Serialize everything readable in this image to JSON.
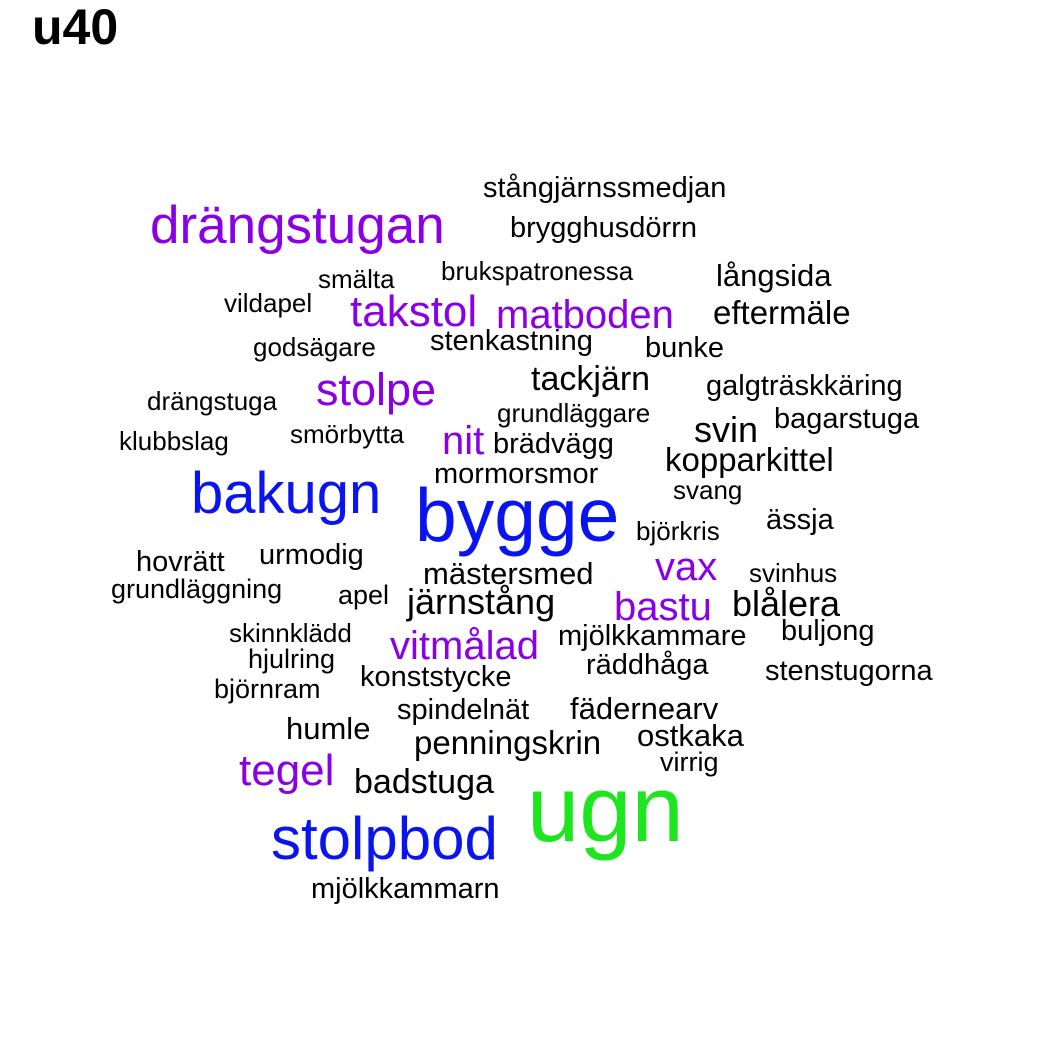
{
  "title": "u40",
  "palette": {
    "black": "#000000",
    "purple": "#8a00e6",
    "blue": "#0a14ee",
    "green": "#1ee61e"
  },
  "words": [
    {
      "text": "stångjärnssmedjan",
      "color": "black"
    },
    {
      "text": "drängstugan",
      "color": "purple"
    },
    {
      "text": "brygghusdörrn",
      "color": "black"
    },
    {
      "text": "smälta",
      "color": "black"
    },
    {
      "text": "brukspatronessa",
      "color": "black"
    },
    {
      "text": "långsida",
      "color": "black"
    },
    {
      "text": "vildapel",
      "color": "black"
    },
    {
      "text": "takstol",
      "color": "purple"
    },
    {
      "text": "matboden",
      "color": "purple"
    },
    {
      "text": "eftermäle",
      "color": "black"
    },
    {
      "text": "godsägare",
      "color": "black"
    },
    {
      "text": "stenkastning",
      "color": "black"
    },
    {
      "text": "bunke",
      "color": "black"
    },
    {
      "text": "tackjärn",
      "color": "black"
    },
    {
      "text": "stolpe",
      "color": "purple"
    },
    {
      "text": "galgträskkäring",
      "color": "black"
    },
    {
      "text": "drängstuga",
      "color": "black"
    },
    {
      "text": "grundläggare",
      "color": "black"
    },
    {
      "text": "bagarstuga",
      "color": "black"
    },
    {
      "text": "svin",
      "color": "black"
    },
    {
      "text": "smörbytta",
      "color": "black"
    },
    {
      "text": "nit",
      "color": "purple"
    },
    {
      "text": "klubbslag",
      "color": "black"
    },
    {
      "text": "brädvägg",
      "color": "black"
    },
    {
      "text": "kopparkittel",
      "color": "black"
    },
    {
      "text": "mormorsmor",
      "color": "black"
    },
    {
      "text": "bakugn",
      "color": "blue"
    },
    {
      "text": "svang",
      "color": "black"
    },
    {
      "text": "bygge",
      "color": "blue"
    },
    {
      "text": "ässja",
      "color": "black"
    },
    {
      "text": "björkris",
      "color": "black"
    },
    {
      "text": "hovrätt",
      "color": "black"
    },
    {
      "text": "urmodig",
      "color": "black"
    },
    {
      "text": "vax",
      "color": "purple"
    },
    {
      "text": "mästersmed",
      "color": "black"
    },
    {
      "text": "svinhus",
      "color": "black"
    },
    {
      "text": "grundläggning",
      "color": "black"
    },
    {
      "text": "apel",
      "color": "black"
    },
    {
      "text": "järnstång",
      "color": "black"
    },
    {
      "text": "bastu",
      "color": "purple"
    },
    {
      "text": "blålera",
      "color": "black"
    },
    {
      "text": "skinnklädd",
      "color": "black"
    },
    {
      "text": "vitmålad",
      "color": "purple"
    },
    {
      "text": "mjölkkammare",
      "color": "black"
    },
    {
      "text": "buljong",
      "color": "black"
    },
    {
      "text": "hjulring",
      "color": "black"
    },
    {
      "text": "räddhåga",
      "color": "black"
    },
    {
      "text": "stenstugorna",
      "color": "black"
    },
    {
      "text": "konststycke",
      "color": "black"
    },
    {
      "text": "björnram",
      "color": "black"
    },
    {
      "text": "spindelnät",
      "color": "black"
    },
    {
      "text": "fädernearv",
      "color": "black"
    },
    {
      "text": "humle",
      "color": "black"
    },
    {
      "text": "penningskrin",
      "color": "black"
    },
    {
      "text": "ostkaka",
      "color": "black"
    },
    {
      "text": "virrig",
      "color": "black"
    },
    {
      "text": "tegel",
      "color": "purple"
    },
    {
      "text": "badstuga",
      "color": "black"
    },
    {
      "text": "ugn",
      "color": "green"
    },
    {
      "text": "stolpbod",
      "color": "blue"
    },
    {
      "text": "mjölkkammarn",
      "color": "black"
    }
  ]
}
